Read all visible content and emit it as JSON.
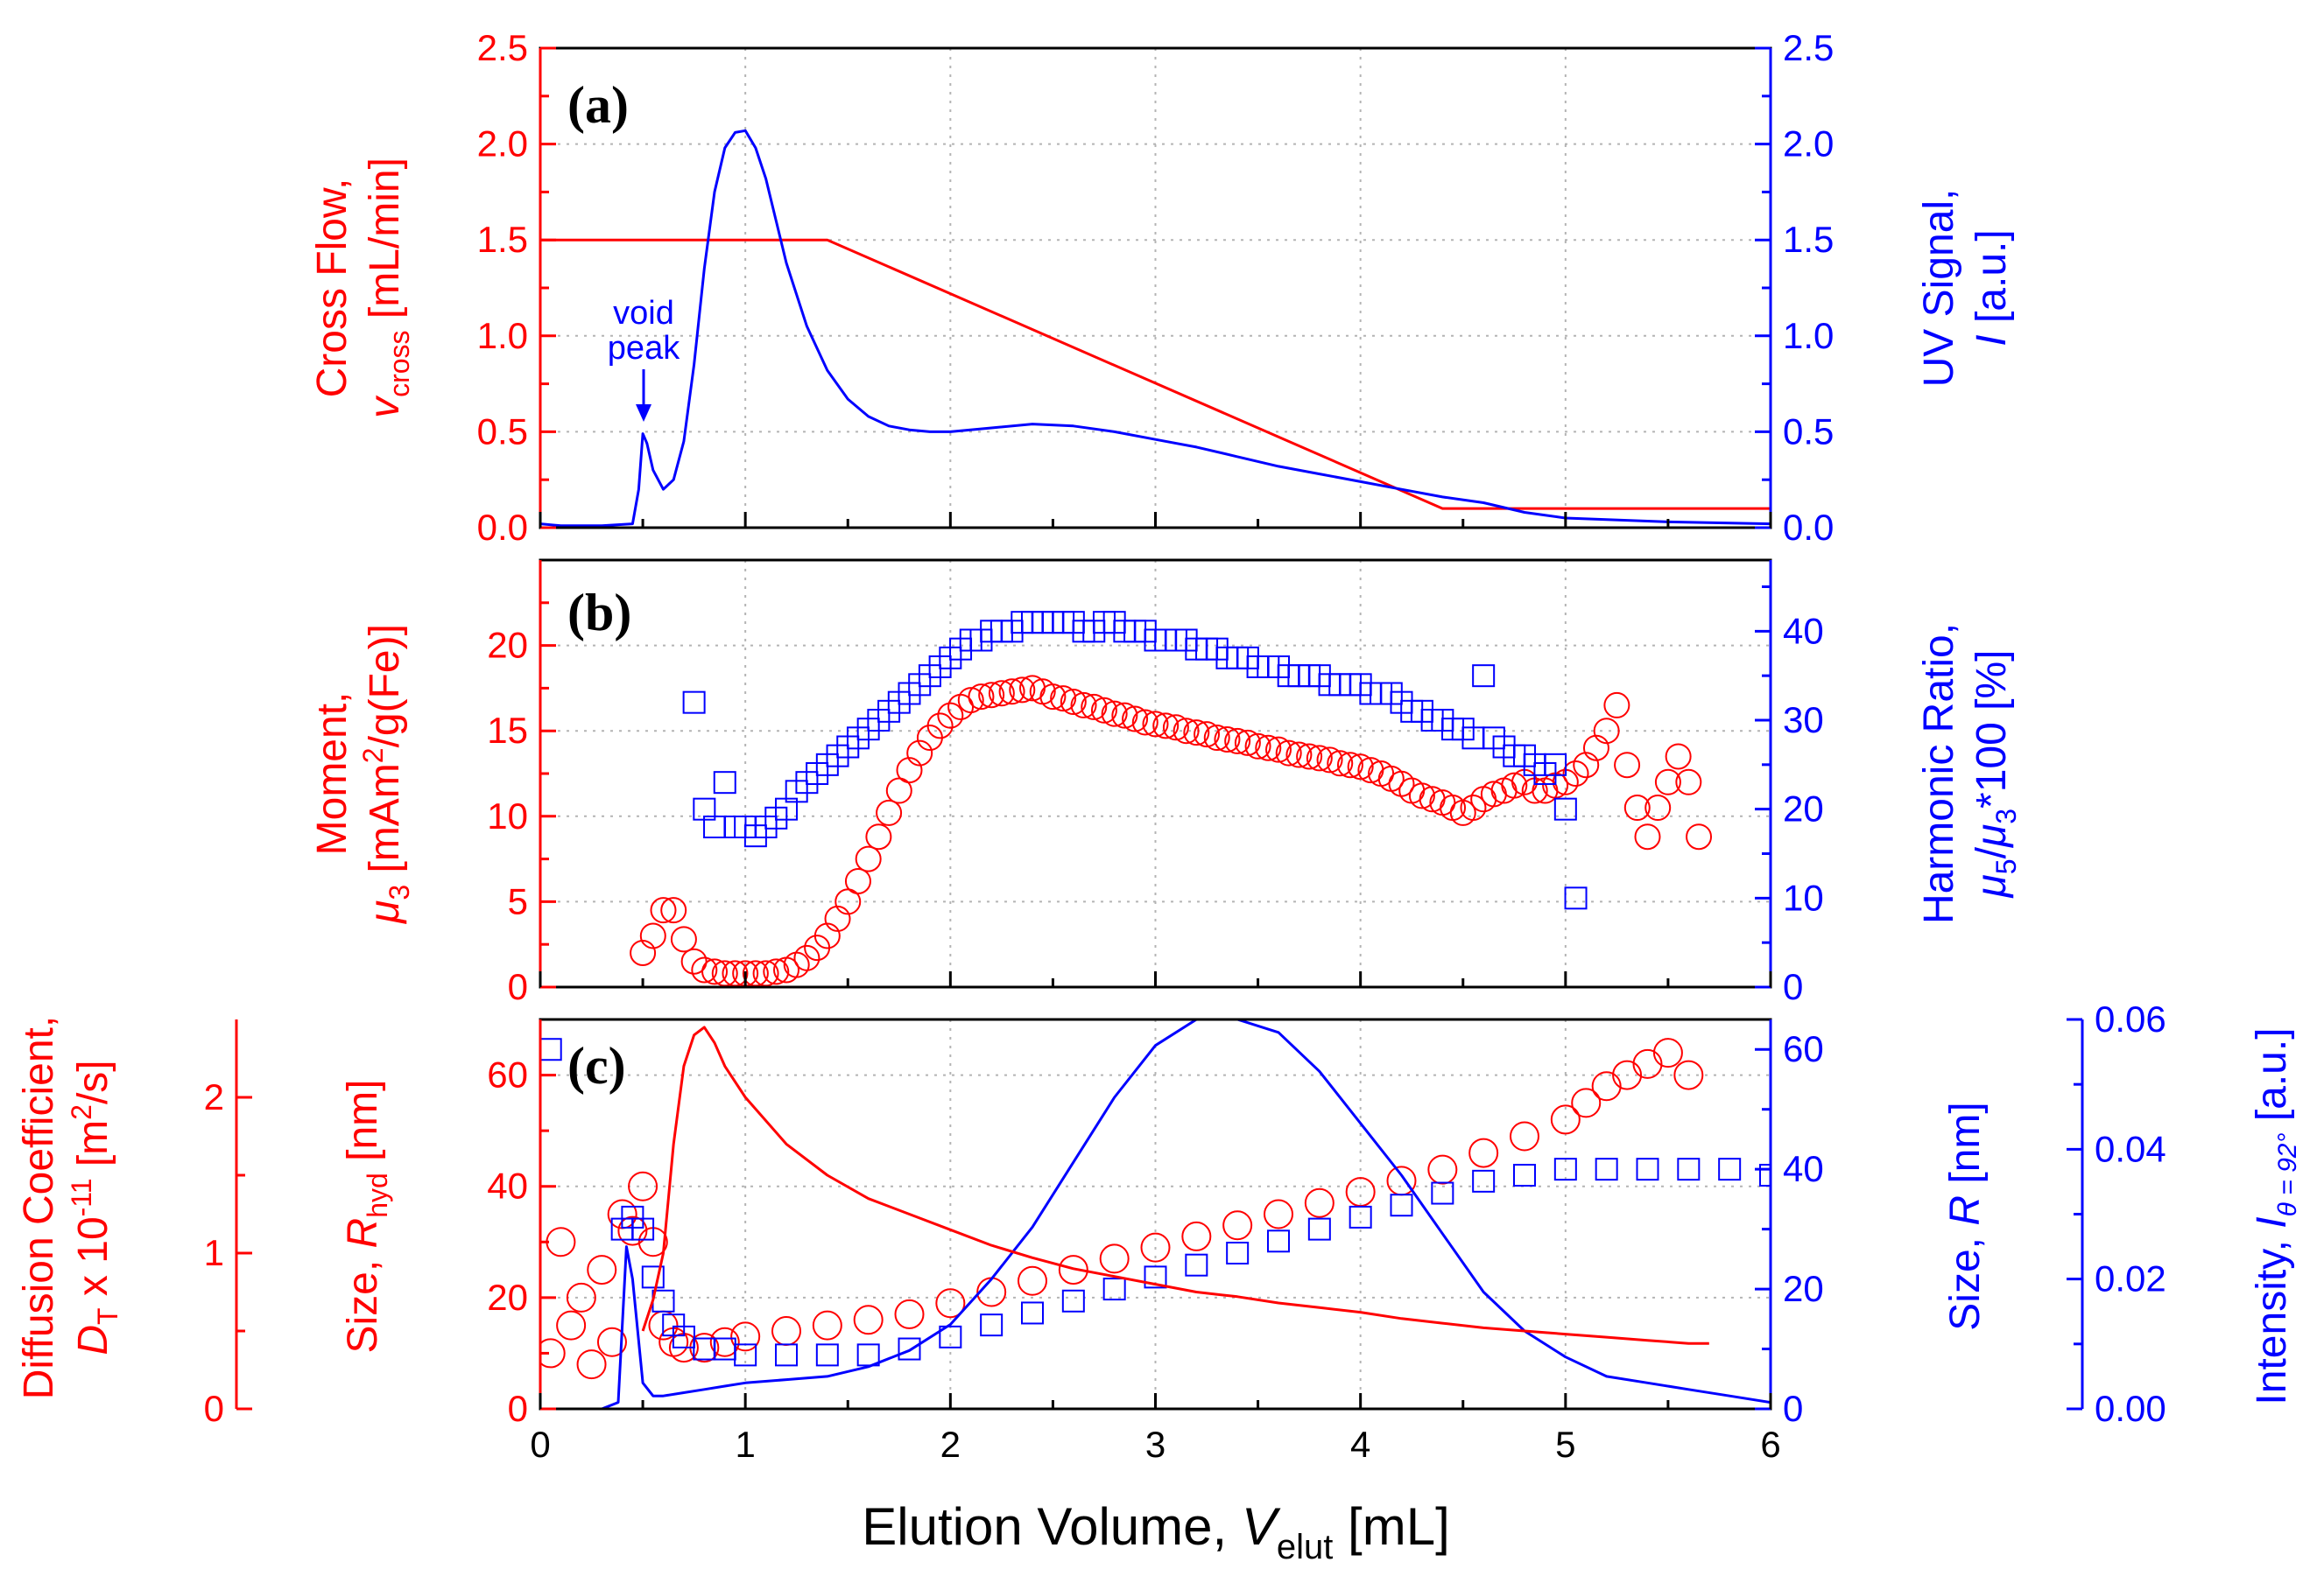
{
  "colors": {
    "red": "#ff0000",
    "blue": "#0000ff",
    "grid": "#b4b4b4",
    "axis": "#000000"
  },
  "chart_data": [
    {
      "panel": "(a)",
      "type": "line",
      "xlim": [
        0,
        6
      ],
      "ylim_left": [
        0,
        2.5
      ],
      "ylim_right": [
        0,
        2.5
      ],
      "yticks_left": [
        "0.0",
        "0.5",
        "1.0",
        "1.5",
        "2.0",
        "2.5"
      ],
      "yticks_right": [
        "0.0",
        "0.5",
        "1.0",
        "1.5",
        "2.0",
        "2.5"
      ],
      "ylabel_left": {
        "line1": "Cross Flow,",
        "sym": "v",
        "sub": "cross",
        "unit": " [mL/min]"
      },
      "ylabel_right": {
        "line1": "UV Signal,",
        "sym": "I",
        "unit": " [a.u.]"
      },
      "annotation": {
        "line1": "void",
        "line2": "peak",
        "x": 0.5,
        "y": 0.55
      },
      "series": [
        {
          "name": "Cross flow",
          "axis": "left",
          "color": "#ff0000",
          "x": [
            0,
            1.4,
            4.4,
            6.0
          ],
          "y": [
            1.5,
            1.5,
            0.1,
            0.1
          ]
        },
        {
          "name": "UV signal",
          "axis": "right",
          "color": "#0000ff",
          "x": [
            0,
            0.1,
            0.3,
            0.45,
            0.48,
            0.5,
            0.52,
            0.55,
            0.6,
            0.65,
            0.7,
            0.75,
            0.8,
            0.85,
            0.9,
            0.95,
            1.0,
            1.05,
            1.1,
            1.15,
            1.2,
            1.3,
            1.4,
            1.5,
            1.6,
            1.7,
            1.8,
            1.9,
            2.0,
            2.2,
            2.4,
            2.6,
            2.8,
            3.0,
            3.2,
            3.4,
            3.6,
            3.8,
            4.0,
            4.2,
            4.4,
            4.6,
            4.8,
            5.0,
            5.5,
            6.0
          ],
          "y": [
            0.02,
            0.01,
            0.01,
            0.02,
            0.2,
            0.49,
            0.44,
            0.3,
            0.2,
            0.25,
            0.45,
            0.85,
            1.35,
            1.75,
            1.98,
            2.06,
            2.07,
            1.98,
            1.82,
            1.6,
            1.38,
            1.05,
            0.82,
            0.67,
            0.58,
            0.53,
            0.51,
            0.5,
            0.5,
            0.52,
            0.54,
            0.53,
            0.5,
            0.46,
            0.42,
            0.37,
            0.32,
            0.28,
            0.24,
            0.2,
            0.16,
            0.13,
            0.08,
            0.05,
            0.03,
            0.02
          ]
        }
      ]
    },
    {
      "panel": "(b)",
      "type": "scatter",
      "xlim": [
        0,
        6
      ],
      "ylim_left": [
        0,
        25
      ],
      "ylim_right": [
        0,
        48
      ],
      "yticks_left": [
        "0",
        "5",
        "10",
        "15",
        "20"
      ],
      "yticks_right": [
        "0",
        "10",
        "20",
        "30",
        "40"
      ],
      "ylabel_left": {
        "line1": "Moment,",
        "sym": "μ",
        "sub": "3",
        "unit": " [mAm²/g(Fe)]"
      },
      "ylabel_right": {
        "line1": "Harmonic Ratio,",
        "expr": "μ5/μ3*100 [%]"
      },
      "series": [
        {
          "name": "Moment mu3",
          "axis": "left",
          "color": "#ff0000",
          "marker": "circle",
          "x": [
            0.5,
            0.55,
            0.6,
            0.65,
            0.7,
            0.75,
            0.8,
            0.85,
            0.9,
            0.95,
            1.0,
            1.05,
            1.1,
            1.15,
            1.2,
            1.25,
            1.3,
            1.35,
            1.4,
            1.45,
            1.5,
            1.55,
            1.6,
            1.65,
            1.7,
            1.75,
            1.8,
            1.85,
            1.9,
            1.95,
            2.0,
            2.05,
            2.1,
            2.15,
            2.2,
            2.25,
            2.3,
            2.35,
            2.4,
            2.45,
            2.5,
            2.55,
            2.6,
            2.65,
            2.7,
            2.75,
            2.8,
            2.85,
            2.9,
            2.95,
            3.0,
            3.05,
            3.1,
            3.15,
            3.2,
            3.25,
            3.3,
            3.35,
            3.4,
            3.45,
            3.5,
            3.55,
            3.6,
            3.65,
            3.7,
            3.75,
            3.8,
            3.85,
            3.9,
            3.95,
            4.0,
            4.05,
            4.1,
            4.15,
            4.2,
            4.25,
            4.3,
            4.35,
            4.4,
            4.45,
            4.5,
            4.55,
            4.6,
            4.65,
            4.7,
            4.75,
            4.8,
            4.85,
            4.9,
            4.95,
            5.0,
            5.05,
            5.1,
            5.15,
            5.2,
            5.25,
            5.3,
            5.35,
            5.4,
            5.45,
            5.5,
            5.55,
            5.6,
            5.65
          ],
          "y": [
            2,
            3,
            4.5,
            4.5,
            2.8,
            1.5,
            1,
            0.9,
            0.8,
            0.8,
            0.8,
            0.8,
            0.8,
            0.9,
            1.0,
            1.3,
            1.7,
            2.3,
            3.0,
            4.0,
            5.0,
            6.2,
            7.5,
            8.8,
            10.2,
            11.5,
            12.7,
            13.7,
            14.6,
            15.3,
            15.9,
            16.4,
            16.8,
            17.0,
            17.1,
            17.2,
            17.3,
            17.4,
            17.5,
            17.3,
            17.0,
            16.9,
            16.7,
            16.5,
            16.4,
            16.2,
            16.0,
            15.9,
            15.7,
            15.5,
            15.4,
            15.3,
            15.2,
            15.0,
            14.9,
            14.8,
            14.6,
            14.5,
            14.4,
            14.3,
            14.1,
            14.0,
            13.9,
            13.7,
            13.6,
            13.5,
            13.4,
            13.3,
            13.1,
            13.0,
            12.9,
            12.7,
            12.5,
            12.2,
            11.9,
            11.5,
            11.2,
            11.0,
            10.8,
            10.5,
            10.2,
            10.5,
            11.0,
            11.3,
            11.5,
            11.8,
            12.0,
            11.5,
            11.5,
            11.8,
            12.0,
            12.5,
            13.0,
            14.0,
            15.0,
            16.5,
            13.0,
            10.5,
            8.8,
            10.5,
            12.0,
            13.5,
            12.0,
            8.8
          ]
        },
        {
          "name": "Harmonic ratio",
          "axis": "right",
          "color": "#0000ff",
          "marker": "square",
          "x": [
            0.75,
            0.8,
            0.85,
            0.9,
            0.95,
            1.0,
            1.05,
            1.1,
            1.15,
            1.2,
            1.25,
            1.3,
            1.35,
            1.4,
            1.45,
            1.5,
            1.55,
            1.6,
            1.65,
            1.7,
            1.75,
            1.8,
            1.85,
            1.9,
            1.95,
            2.0,
            2.05,
            2.1,
            2.15,
            2.2,
            2.25,
            2.3,
            2.35,
            2.4,
            2.45,
            2.5,
            2.55,
            2.6,
            2.65,
            2.7,
            2.75,
            2.8,
            2.85,
            2.9,
            2.95,
            3.0,
            3.05,
            3.1,
            3.15,
            3.2,
            3.25,
            3.3,
            3.35,
            3.4,
            3.45,
            3.5,
            3.55,
            3.6,
            3.65,
            3.7,
            3.75,
            3.8,
            3.85,
            3.9,
            3.95,
            4.0,
            4.05,
            4.1,
            4.15,
            4.2,
            4.25,
            4.3,
            4.35,
            4.4,
            4.45,
            4.5,
            4.55,
            4.6,
            4.65,
            4.7,
            4.75,
            4.8,
            4.85,
            4.9,
            4.95,
            5.0,
            5.05
          ],
          "y": [
            32,
            20,
            18,
            23,
            18,
            18,
            17,
            18,
            19,
            20,
            22,
            23,
            24,
            25,
            26,
            27,
            28,
            29,
            30,
            31,
            32,
            33,
            34,
            35,
            36,
            37,
            38,
            39,
            39,
            40,
            40,
            40,
            41,
            41,
            41,
            41,
            41,
            41,
            40,
            40,
            41,
            41,
            40,
            40,
            40,
            39,
            39,
            39,
            39,
            38,
            38,
            38,
            37,
            37,
            37,
            36,
            36,
            36,
            35,
            35,
            35,
            35,
            34,
            34,
            34,
            34,
            33,
            33,
            33,
            32,
            31,
            31,
            30,
            30,
            29,
            29,
            28,
            35,
            28,
            27,
            26,
            26,
            25,
            24,
            25,
            20,
            10
          ]
        }
      ]
    },
    {
      "panel": "(c)",
      "type": "scatter",
      "xlim": [
        0,
        6
      ],
      "xticks": [
        "0",
        "1",
        "2",
        "3",
        "4",
        "5",
        "6"
      ],
      "xlabel": {
        "text": "Elution Volume, ",
        "sym": "V",
        "sub": "elut",
        "unit": " [mL]"
      },
      "ylim_rhyd": [
        0,
        70
      ],
      "yticks_rhyd": [
        "0",
        "20",
        "40",
        "60"
      ],
      "ylim_diffusion": [
        0,
        2.5
      ],
      "yticks_diffusion": [
        "0",
        "1",
        "2"
      ],
      "ylim_size_R": [
        0,
        65
      ],
      "yticks_size_R": [
        "0",
        "20",
        "40",
        "60"
      ],
      "ylim_intensity": [
        0,
        0.06
      ],
      "yticks_intensity": [
        "0.00",
        "0.02",
        "0.04",
        "0.06"
      ],
      "ylabel_diffusion": {
        "line1": "Diffusion Coefficient,",
        "sym": "D",
        "sub": "T",
        "unit": " x 10⁻¹¹ [m²/s]"
      },
      "ylabel_rhyd": {
        "text": "Size, ",
        "sym": "R",
        "sub": "hyd",
        "unit": " [nm]"
      },
      "ylabel_size_R": {
        "text": "Size, ",
        "sym": "R",
        "unit": " [nm]"
      },
      "ylabel_intensity": {
        "text": "Intensity, ",
        "sym": "I",
        "sub": "θ = 92°",
        "unit": " [a.u.]"
      },
      "series": [
        {
          "name": "Diffusion coefficient D_T",
          "axis": "diffusion",
          "color": "#ff0000",
          "marker": "noisy-line",
          "x": [
            0.5,
            0.55,
            0.6,
            0.65,
            0.7,
            0.75,
            0.8,
            0.85,
            0.9,
            1.0,
            1.2,
            1.4,
            1.6,
            1.8,
            2.0,
            2.2,
            2.4,
            2.6,
            2.8,
            3.0,
            3.2,
            3.4,
            3.6,
            3.8,
            4.0,
            4.2,
            4.4,
            4.6,
            4.8,
            5.0,
            5.2,
            5.4,
            5.6,
            5.7
          ],
          "y": [
            0.5,
            0.7,
            1.0,
            1.7,
            2.2,
            2.4,
            2.45,
            2.35,
            2.2,
            2.0,
            1.7,
            1.5,
            1.35,
            1.25,
            1.15,
            1.05,
            0.97,
            0.9,
            0.85,
            0.8,
            0.75,
            0.72,
            0.68,
            0.65,
            0.62,
            0.58,
            0.55,
            0.52,
            0.5,
            0.48,
            0.46,
            0.44,
            0.42,
            0.42
          ]
        },
        {
          "name": "Size R_hyd",
          "axis": "rhyd",
          "color": "#ff0000",
          "marker": "circle",
          "x": [
            0.05,
            0.1,
            0.15,
            0.2,
            0.25,
            0.3,
            0.35,
            0.4,
            0.45,
            0.5,
            0.55,
            0.6,
            0.65,
            0.7,
            0.8,
            0.9,
            1.0,
            1.2,
            1.4,
            1.6,
            1.8,
            2.0,
            2.2,
            2.4,
            2.6,
            2.8,
            3.0,
            3.2,
            3.4,
            3.6,
            3.8,
            4.0,
            4.2,
            4.4,
            4.6,
            4.8,
            5.0,
            5.1,
            5.2,
            5.3,
            5.4,
            5.5,
            5.6
          ],
          "y": [
            10,
            30,
            15,
            20,
            8,
            25,
            12,
            35,
            32,
            40,
            30,
            15,
            12,
            11,
            11,
            12,
            13,
            14,
            15,
            16,
            17,
            19,
            21,
            23,
            25,
            27,
            29,
            31,
            33,
            35,
            37,
            39,
            41,
            43,
            46,
            49,
            52,
            55,
            58,
            60,
            62,
            64,
            60
          ]
        },
        {
          "name": "Size R",
          "axis": "size_R",
          "color": "#0000ff",
          "marker": "square",
          "x": [
            0.05,
            0.4,
            0.45,
            0.5,
            0.55,
            0.6,
            0.65,
            0.7,
            0.8,
            0.9,
            1.0,
            1.2,
            1.4,
            1.6,
            1.8,
            2.0,
            2.2,
            2.4,
            2.6,
            2.8,
            3.0,
            3.2,
            3.4,
            3.6,
            3.8,
            4.0,
            4.2,
            4.4,
            4.6,
            4.8,
            5.0,
            5.2,
            5.4,
            5.6,
            5.8,
            6.0
          ],
          "y": [
            60,
            30,
            32,
            30,
            22,
            18,
            14,
            12,
            10,
            10,
            9,
            9,
            9,
            9,
            10,
            12,
            14,
            16,
            18,
            20,
            22,
            24,
            26,
            28,
            30,
            32,
            34,
            36,
            38,
            39,
            40,
            40,
            40,
            40,
            40,
            39
          ]
        },
        {
          "name": "Intensity",
          "axis": "intensity",
          "color": "#0000ff",
          "marker": "line",
          "x": [
            0,
            0.3,
            0.38,
            0.42,
            0.45,
            0.5,
            0.55,
            0.6,
            0.7,
            0.8,
            0.9,
            1.0,
            1.2,
            1.4,
            1.6,
            1.8,
            2.0,
            2.2,
            2.4,
            2.6,
            2.8,
            3.0,
            3.2,
            3.4,
            3.6,
            3.8,
            4.0,
            4.2,
            4.4,
            4.6,
            4.8,
            5.0,
            5.2,
            5.4,
            5.6,
            5.8,
            6.0
          ],
          "y": [
            0.0,
            0.0,
            0.001,
            0.025,
            0.02,
            0.004,
            0.002,
            0.002,
            0.0025,
            0.003,
            0.0035,
            0.004,
            0.0045,
            0.005,
            0.0065,
            0.009,
            0.013,
            0.02,
            0.028,
            0.038,
            0.048,
            0.056,
            0.06,
            0.06,
            0.058,
            0.052,
            0.044,
            0.036,
            0.027,
            0.018,
            0.012,
            0.008,
            0.005,
            0.004,
            0.003,
            0.002,
            0.001
          ]
        }
      ]
    }
  ],
  "labels": {
    "panel_a": "(a)",
    "panel_b": "(b)",
    "panel_c": "(c)",
    "a_left_1": "Cross Flow,",
    "a_left_sym": "v",
    "a_left_sub": "cross",
    "a_left_unit": " [mL/min]",
    "a_right_1": "UV Signal,",
    "a_right_sym": "I",
    "a_right_unit": " [a.u.]",
    "void_1": "void",
    "void_2": "peak",
    "b_left_1": "Moment,",
    "b_left_sym": "μ",
    "b_left_sub": "3",
    "b_left_unit": " [mAm",
    "b_left_sup": "2",
    "b_left_unit2": "/g(Fe)]",
    "b_right_1": "Harmonic Ratio,",
    "b_right_mu": "μ",
    "b_right_sub5": "5",
    "b_right_slash": "/",
    "b_right_sub3": "3",
    "b_right_tail": "*100 [%]",
    "c_diff_1": "Diffusion Coefficient,",
    "c_diff_sym": "D",
    "c_diff_sub": "T",
    "c_diff_unit": " x 10",
    "c_diff_sup": "-11",
    "c_diff_unit2": " [m",
    "c_diff_sup2": "2",
    "c_diff_unit3": "/s]",
    "c_rhyd_text": "Size, ",
    "c_rhyd_sym": "R",
    "c_rhyd_sub": "hyd",
    "c_rhyd_unit": " [nm]",
    "c_R_text": "Size, ",
    "c_R_sym": "R",
    "c_R_unit": " [nm]",
    "c_int_text": "Intensity, ",
    "c_int_sym": "I",
    "c_int_sub": "θ = 92°",
    "c_int_unit": " [a.u.]",
    "x_text": "Elution Volume, ",
    "x_sym": "V",
    "x_sub": "elut",
    "x_unit": " [mL]"
  }
}
